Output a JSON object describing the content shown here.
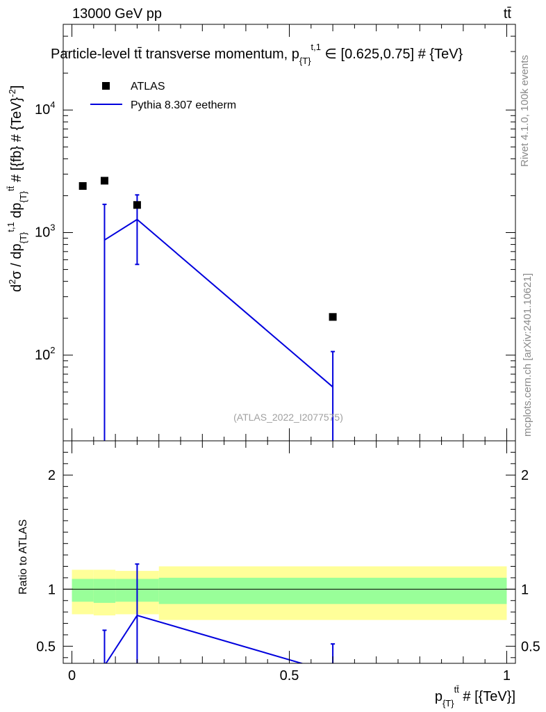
{
  "header": {
    "energy_label": "13000 GeV pp",
    "process_label": "tt̄"
  },
  "side_labels": {
    "rivet": "Rivet 4.1.0,  100k events",
    "source": "mcplots.cern.ch [arXiv:2401.10621]"
  },
  "watermark": "(ATLAS_2022_I2077575)",
  "legend": {
    "data_label": "ATLAS",
    "mc_label": "Pythia 8.307 eetherm"
  },
  "colors": {
    "mc_line": "#0000dd",
    "band_inner": "#99ff99",
    "band_outer": "#ffff99",
    "data_marker": "#000000"
  },
  "chart_data": [
    {
      "type": "scatter",
      "panel": "main",
      "title": "Particle-level tt̄ transverse momentum, p_{T}^{t,1} ∈ [0.625,0.75] # {TeV}",
      "title_main": "Particle-level tt̄ transverse momentum, p",
      "title_sub": "{T}",
      "title_sup": "t,1",
      "title_tail": " ∈ [0.625,0.75] # {TeV}",
      "ylabel": "d²σ / dp_{T}^{t,1} dp_{T}^{tt̄} # [{fb} # {TeV}^-2]",
      "ylabel_parts": {
        "a": "d",
        "a_sup": "2",
        "b": "σ / dp",
        "b_sub": "{T}",
        "b_sup": "t,1",
        "c": " dp",
        "c_sub": "{T}",
        "c_sup": "tt̄",
        "d": " # [{fb} # {TeV}",
        "d_sup": "-2",
        "e": "]"
      },
      "yscale": "log",
      "ylim": [
        20,
        50000
      ],
      "xlim": [
        -0.02,
        1.02
      ],
      "ytick_labels": [
        {
          "base": "10",
          "exp": "2",
          "value": 100
        },
        {
          "base": "10",
          "exp": "3",
          "value": 1000
        },
        {
          "base": "10",
          "exp": "4",
          "value": 10000
        }
      ],
      "series": [
        {
          "name": "ATLAS",
          "style": "markers",
          "x": [
            0.025,
            0.075,
            0.15,
            0.6
          ],
          "y": [
            2400,
            2650,
            1680,
            205
          ]
        },
        {
          "name": "Pythia 8.307 eetherm",
          "style": "line",
          "x": [
            0.075,
            0.15,
            0.6
          ],
          "y": [
            870,
            1280,
            55
          ],
          "err_low": [
            870,
            730,
            55
          ],
          "err_high": [
            830,
            750,
            52
          ]
        }
      ]
    },
    {
      "type": "line",
      "panel": "ratio",
      "ylabel": "Ratio to ATLAS",
      "xlabel": "p_{T}^{tt̄} # [{TeV}]",
      "xlabel_parts": {
        "a": "p",
        "a_sub": "{T}",
        "a_sup": "tt̄",
        "b": " # [{TeV}]"
      },
      "ylim": [
        0.35,
        2.3
      ],
      "xlim": [
        -0.02,
        1.02
      ],
      "xtick_labels": [
        {
          "label": "0",
          "value": 0
        },
        {
          "label": "0.5",
          "value": 0.5
        },
        {
          "label": "1",
          "value": 1
        }
      ],
      "ytick_labels": [
        {
          "label": "0.5",
          "value": 0.5
        },
        {
          "label": "1",
          "value": 1
        },
        {
          "label": "2",
          "value": 2
        }
      ],
      "bands": [
        {
          "x0": 0.0,
          "x1": 0.05,
          "inner": [
            0.89,
            1.09
          ],
          "outer": [
            0.78,
            1.17
          ]
        },
        {
          "x0": 0.05,
          "x1": 0.1,
          "inner": [
            0.88,
            1.09
          ],
          "outer": [
            0.77,
            1.17
          ]
        },
        {
          "x0": 0.1,
          "x1": 0.2,
          "inner": [
            0.89,
            1.09
          ],
          "outer": [
            0.78,
            1.16
          ]
        },
        {
          "x0": 0.2,
          "x1": 1.0,
          "inner": [
            0.87,
            1.1
          ],
          "outer": [
            0.73,
            1.2
          ]
        }
      ],
      "series": [
        {
          "name": "Pythia 8.307 eetherm / ATLAS",
          "x": [
            0.075,
            0.15,
            0.6
          ],
          "y": [
            0.33,
            0.77,
            0.27
          ],
          "err_low": [
            0.33,
            0.45,
            0.27
          ],
          "err_high": [
            0.31,
            0.45,
            0.25
          ]
        }
      ]
    }
  ]
}
